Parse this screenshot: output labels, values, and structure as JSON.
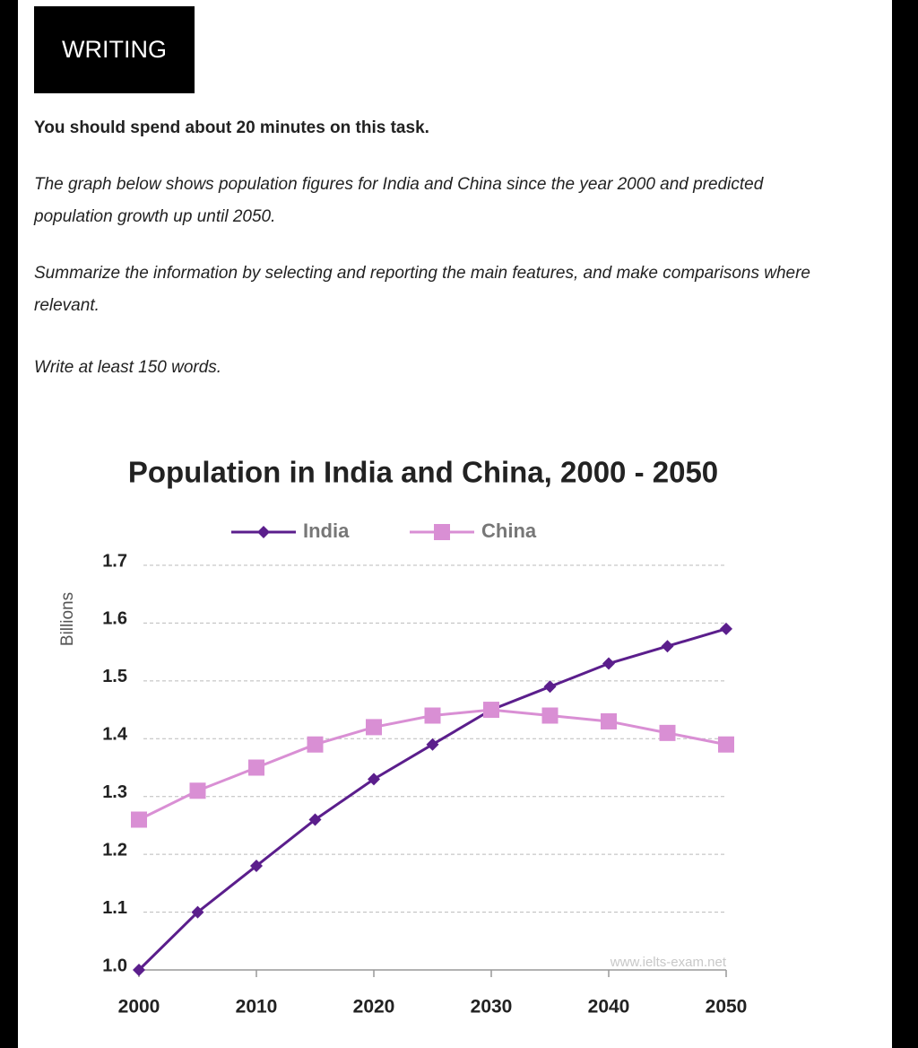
{
  "header": {
    "title": "WRITING"
  },
  "instructions": [
    "You should spend about 20 minutes on this task.",
    "The graph below shows population figures for India and China since the year 2000 and predicted population growth up until 2050.",
    "Summarize the information by selecting and reporting the main features, and make comparisons where relevant.",
    "Write at least 150 words."
  ],
  "chart_data": {
    "type": "line",
    "title": "Population in India and China, 2000 - 2050",
    "y_label": "Billions",
    "source": "www.ielts-exam.net",
    "x": [
      2000,
      2005,
      2010,
      2015,
      2020,
      2025,
      2030,
      2035,
      2040,
      2045,
      2050
    ],
    "series": [
      {
        "name": "India",
        "color": "#5b1e8c",
        "marker": "diamond",
        "values": [
          1.0,
          1.1,
          1.18,
          1.26,
          1.33,
          1.39,
          1.45,
          1.49,
          1.53,
          1.56,
          1.59
        ]
      },
      {
        "name": "China",
        "color": "#d98fd4",
        "marker": "square",
        "values": [
          1.26,
          1.31,
          1.35,
          1.39,
          1.42,
          1.44,
          1.45,
          1.44,
          1.43,
          1.41,
          1.39
        ]
      }
    ],
    "xlim": [
      2000,
      2050
    ],
    "xticks": [
      2000,
      2010,
      2020,
      2030,
      2040,
      2050
    ],
    "ylim": [
      1.0,
      1.7
    ],
    "yticks": [
      {
        "value": 1.0,
        "label": "1.0"
      },
      1.1,
      1.2,
      1.3,
      1.4,
      1.5,
      1.6,
      1.7
    ],
    "grid": true,
    "legend": "top"
  }
}
